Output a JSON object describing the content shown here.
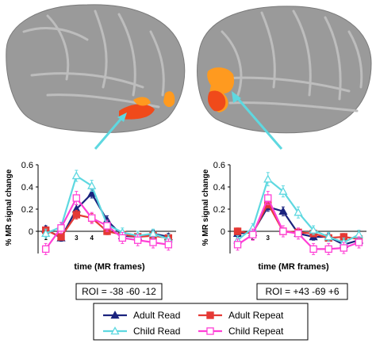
{
  "figure": {
    "colors": {
      "adult_read": "#1a237e",
      "adult_repeat": "#e53935",
      "child_read": "#5ed8e0",
      "child_repeat": "#ff3fd6",
      "brain": "#9a9a9a",
      "activation_orange": "#ff9a1f",
      "activation_red": "#f04a1a",
      "pointer": "#5ed8e0"
    },
    "legend": [
      {
        "label": "Adult Read",
        "series": "adult_read",
        "marker": "triangle-filled"
      },
      {
        "label": "Adult Repeat",
        "series": "adult_repeat",
        "marker": "square-filled"
      },
      {
        "label": "Child Read",
        "series": "child_read",
        "marker": "triangle-open"
      },
      {
        "label": "Child Repeat",
        "series": "child_repeat",
        "marker": "square-open"
      }
    ]
  },
  "chart_data": [
    {
      "type": "line",
      "xlabel": "time (MR frames)",
      "ylabel": "% MR signal change",
      "ylim": [
        -0.2,
        0.6
      ],
      "yticks": [
        "0.6",
        "0.4",
        "0.2",
        "0"
      ],
      "frame_labels": [
        "1",
        "3",
        "4"
      ],
      "roi": "ROI = -38 -60 -12",
      "x": [
        1,
        2,
        3,
        4,
        5,
        6,
        7,
        8,
        9
      ],
      "series": [
        {
          "key": "adult_read",
          "name": "Adult Read",
          "values": [
            0.02,
            -0.06,
            0.2,
            0.34,
            0.1,
            -0.04,
            -0.05,
            -0.02,
            -0.05
          ],
          "errors": [
            0.03,
            0.03,
            0.04,
            0.04,
            0.04,
            0.03,
            0.03,
            0.03,
            0.03
          ]
        },
        {
          "key": "adult_repeat",
          "name": "Adult Repeat",
          "values": [
            0.01,
            -0.05,
            0.15,
            0.12,
            0.0,
            -0.03,
            -0.05,
            -0.04,
            -0.06
          ],
          "errors": [
            0.03,
            0.03,
            0.04,
            0.04,
            0.03,
            0.03,
            0.03,
            0.03,
            0.03
          ]
        },
        {
          "key": "child_read",
          "name": "Child Read",
          "values": [
            -0.02,
            0.04,
            0.5,
            0.41,
            0.06,
            -0.01,
            -0.04,
            -0.02,
            -0.07
          ],
          "errors": [
            0.04,
            0.04,
            0.05,
            0.05,
            0.04,
            0.04,
            0.04,
            0.04,
            0.04
          ]
        },
        {
          "key": "child_repeat",
          "name": "Child Repeat",
          "values": [
            -0.16,
            0.03,
            0.3,
            0.12,
            0.05,
            -0.06,
            -0.08,
            -0.1,
            -0.12
          ],
          "errors": [
            0.05,
            0.05,
            0.06,
            0.05,
            0.05,
            0.05,
            0.05,
            0.05,
            0.05
          ]
        }
      ]
    },
    {
      "type": "line",
      "xlabel": "time (MR frames)",
      "ylabel": "% MR signal change",
      "ylim": [
        -0.2,
        0.6
      ],
      "yticks": [
        "0.6",
        "0.4",
        "0.2",
        "0"
      ],
      "frame_labels": [
        "1",
        "2",
        "3"
      ],
      "roi": "ROI = +43 -69 +6",
      "x": [
        1,
        2,
        3,
        4,
        5,
        6,
        7,
        8,
        9
      ],
      "series": [
        {
          "key": "adult_read",
          "name": "Adult Read",
          "values": [
            -0.02,
            -0.01,
            0.22,
            0.18,
            -0.02,
            -0.05,
            -0.05,
            -0.12,
            -0.08
          ],
          "errors": [
            0.03,
            0.03,
            0.04,
            0.04,
            0.03,
            0.03,
            0.03,
            0.03,
            0.03
          ]
        },
        {
          "key": "adult_repeat",
          "name": "Adult Repeat",
          "values": [
            0.0,
            -0.02,
            0.25,
            0.0,
            -0.01,
            -0.02,
            -0.06,
            -0.05,
            -0.07
          ],
          "errors": [
            0.03,
            0.03,
            0.04,
            0.03,
            0.03,
            0.03,
            0.03,
            0.03,
            0.03
          ]
        },
        {
          "key": "child_read",
          "name": "Child Read",
          "values": [
            -0.08,
            0.03,
            0.47,
            0.36,
            0.17,
            0.01,
            -0.05,
            -0.1,
            -0.03
          ],
          "errors": [
            0.04,
            0.04,
            0.06,
            0.05,
            0.05,
            0.04,
            0.04,
            0.04,
            0.04
          ]
        },
        {
          "key": "child_repeat",
          "name": "Child Repeat",
          "values": [
            -0.12,
            -0.03,
            0.3,
            0.0,
            -0.02,
            -0.16,
            -0.16,
            -0.15,
            -0.1
          ],
          "errors": [
            0.05,
            0.05,
            0.06,
            0.05,
            0.05,
            0.05,
            0.05,
            0.05,
            0.05
          ]
        }
      ]
    }
  ]
}
